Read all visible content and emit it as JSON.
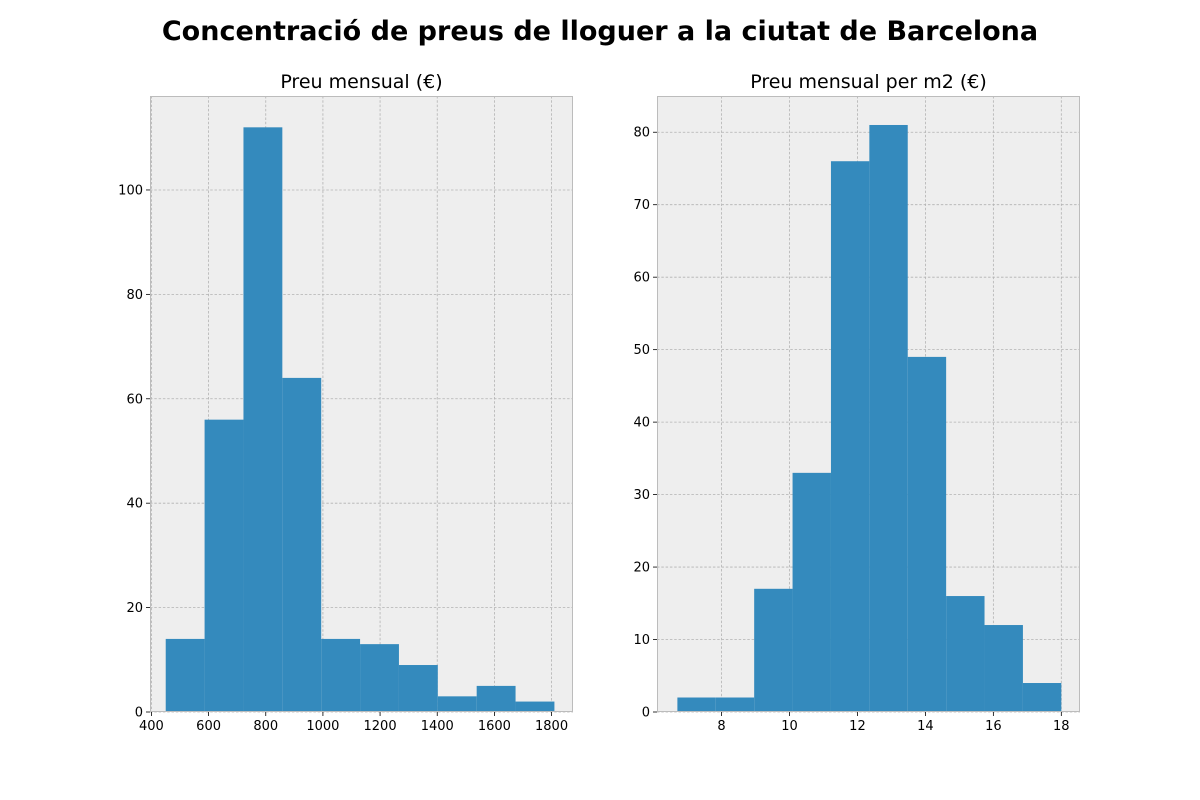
{
  "figure": {
    "title": "Concentració de preus de lloguer a la ciutat de Barcelona"
  },
  "style": {
    "bar_color": "#348abd",
    "axes_bg": "#eeeeee",
    "grid_color": "#b2b2b2",
    "spine_color": "#bcbcbc"
  },
  "chart_data": [
    {
      "type": "bar",
      "title": "Preu mensual (€)",
      "xlabel": "",
      "ylabel": "",
      "xlim": [
        395,
        1875
      ],
      "ylim": [
        0,
        118
      ],
      "xticks": [
        400,
        600,
        800,
        1000,
        1200,
        1400,
        1600,
        1800
      ],
      "yticks": [
        0,
        20,
        40,
        60,
        80,
        100
      ],
      "grid": true,
      "bins": [
        {
          "x0": 450,
          "x1": 586,
          "count": 14
        },
        {
          "x0": 586,
          "x1": 722,
          "count": 56
        },
        {
          "x0": 722,
          "x1": 858,
          "count": 112
        },
        {
          "x0": 858,
          "x1": 994,
          "count": 64
        },
        {
          "x0": 994,
          "x1": 1130,
          "count": 14
        },
        {
          "x0": 1130,
          "x1": 1266,
          "count": 13
        },
        {
          "x0": 1266,
          "x1": 1402,
          "count": 9
        },
        {
          "x0": 1402,
          "x1": 1538,
          "count": 3
        },
        {
          "x0": 1538,
          "x1": 1674,
          "count": 5
        },
        {
          "x0": 1674,
          "x1": 1810,
          "count": 2
        }
      ]
    },
    {
      "type": "bar",
      "title": "Preu mensual per m2 (€)",
      "xlabel": "",
      "ylabel": "",
      "xlim": [
        6.1,
        18.55
      ],
      "ylim": [
        0,
        85
      ],
      "xticks": [
        8,
        10,
        12,
        14,
        16,
        18
      ],
      "yticks": [
        0,
        10,
        20,
        30,
        40,
        50,
        60,
        70,
        80
      ],
      "grid": true,
      "bins": [
        {
          "x0": 6.7,
          "x1": 7.83,
          "count": 2
        },
        {
          "x0": 7.83,
          "x1": 8.96,
          "count": 2
        },
        {
          "x0": 8.96,
          "x1": 10.09,
          "count": 17
        },
        {
          "x0": 10.09,
          "x1": 11.22,
          "count": 33
        },
        {
          "x0": 11.22,
          "x1": 12.35,
          "count": 76
        },
        {
          "x0": 12.35,
          "x1": 13.48,
          "count": 81
        },
        {
          "x0": 13.48,
          "x1": 14.61,
          "count": 49
        },
        {
          "x0": 14.61,
          "x1": 15.74,
          "count": 16
        },
        {
          "x0": 15.74,
          "x1": 16.87,
          "count": 12
        },
        {
          "x0": 16.87,
          "x1": 18.0,
          "count": 4
        }
      ]
    }
  ]
}
